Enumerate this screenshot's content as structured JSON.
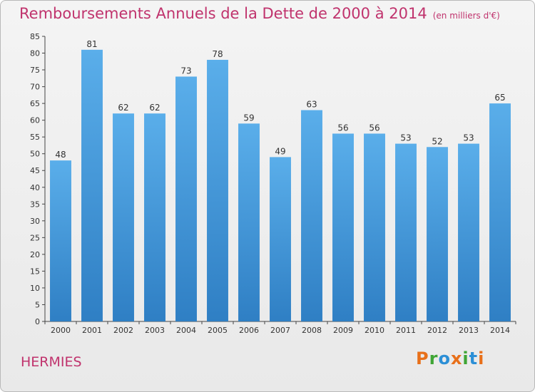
{
  "chart_data": {
    "type": "bar",
    "title": "Remboursements Annuels de la Dette de 2000 à 2014",
    "subtitle": "(en milliers d'€)",
    "categories": [
      "2000",
      "2001",
      "2002",
      "2003",
      "2004",
      "2005",
      "2006",
      "2007",
      "2008",
      "2009",
      "2010",
      "2011",
      "2012",
      "2013",
      "2014"
    ],
    "values": [
      48,
      81,
      62,
      62,
      73,
      78,
      59,
      49,
      63,
      56,
      56,
      53,
      52,
      53,
      65
    ],
    "ylim": [
      0,
      85
    ],
    "yticks": [
      0,
      5,
      10,
      15,
      20,
      25,
      30,
      35,
      40,
      45,
      50,
      55,
      60,
      65,
      70,
      75,
      80,
      85
    ],
    "xlabel": "",
    "ylabel": "",
    "grid": false,
    "bar_color": "#4a9ee0"
  },
  "commune": "HERMIES",
  "logo": {
    "letters": [
      "P",
      "r",
      "o",
      "x",
      "i",
      "t",
      "i"
    ],
    "colors": [
      "#e8701a",
      "#3fa535",
      "#2c8fd6",
      "#e8701a",
      "#3fa535",
      "#2c8fd6",
      "#e8701a"
    ]
  }
}
